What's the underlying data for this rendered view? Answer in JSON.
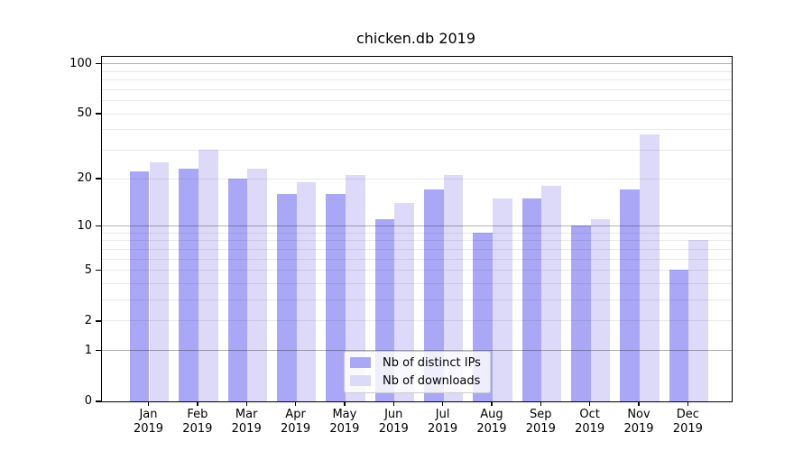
{
  "title": "chicken.db 2019",
  "colors": {
    "distinct_ips": "#aaa8f6",
    "downloads": "#dcdaf8",
    "axis": "#000000",
    "legend_border": "#cccccc"
  },
  "legend": {
    "items": [
      {
        "label": "Nb of distinct IPs",
        "color": "#aaa8f6"
      },
      {
        "label": "Nb of downloads",
        "color": "#dcdaf8"
      }
    ]
  },
  "chart_data": {
    "type": "bar",
    "title": "chicken.db 2019",
    "categories": [
      "Jan 2019",
      "Feb 2019",
      "Mar 2019",
      "Apr 2019",
      "May 2019",
      "Jun 2019",
      "Jul 2019",
      "Aug 2019",
      "Sep 2019",
      "Oct 2019",
      "Nov 2019",
      "Dec 2019"
    ],
    "x_months": [
      "Jan",
      "Feb",
      "Mar",
      "Apr",
      "May",
      "Jun",
      "Jul",
      "Aug",
      "Sep",
      "Oct",
      "Nov",
      "Dec"
    ],
    "x_year": "2019",
    "series": [
      {
        "name": "Nb of distinct IPs",
        "color": "#aaa8f6",
        "values": [
          22,
          23,
          20,
          16,
          16,
          11,
          17,
          9,
          15,
          10,
          17,
          5
        ]
      },
      {
        "name": "Nb of downloads",
        "color": "#dcdaf8",
        "values": [
          25,
          30,
          23,
          19,
          21,
          14,
          21,
          15,
          18,
          11,
          37,
          8
        ]
      }
    ],
    "xlabel": "",
    "ylabel": "",
    "yscale": "symlog (position proportional to ln(1+v))",
    "ylim": [
      0,
      110
    ],
    "ytick_values": [
      100,
      50,
      20,
      10,
      5,
      2,
      1,
      0
    ],
    "ytick_labels": [
      "100",
      "50",
      "20",
      "10",
      "5",
      "2",
      "1",
      "0"
    ],
    "major_grid_values": [
      1,
      10,
      100
    ],
    "minor_grid_values": [
      2,
      3,
      4,
      5,
      6,
      7,
      8,
      9,
      20,
      30,
      40,
      50,
      60,
      70,
      80,
      90
    ],
    "grid": true,
    "legend_position": "lower center"
  }
}
